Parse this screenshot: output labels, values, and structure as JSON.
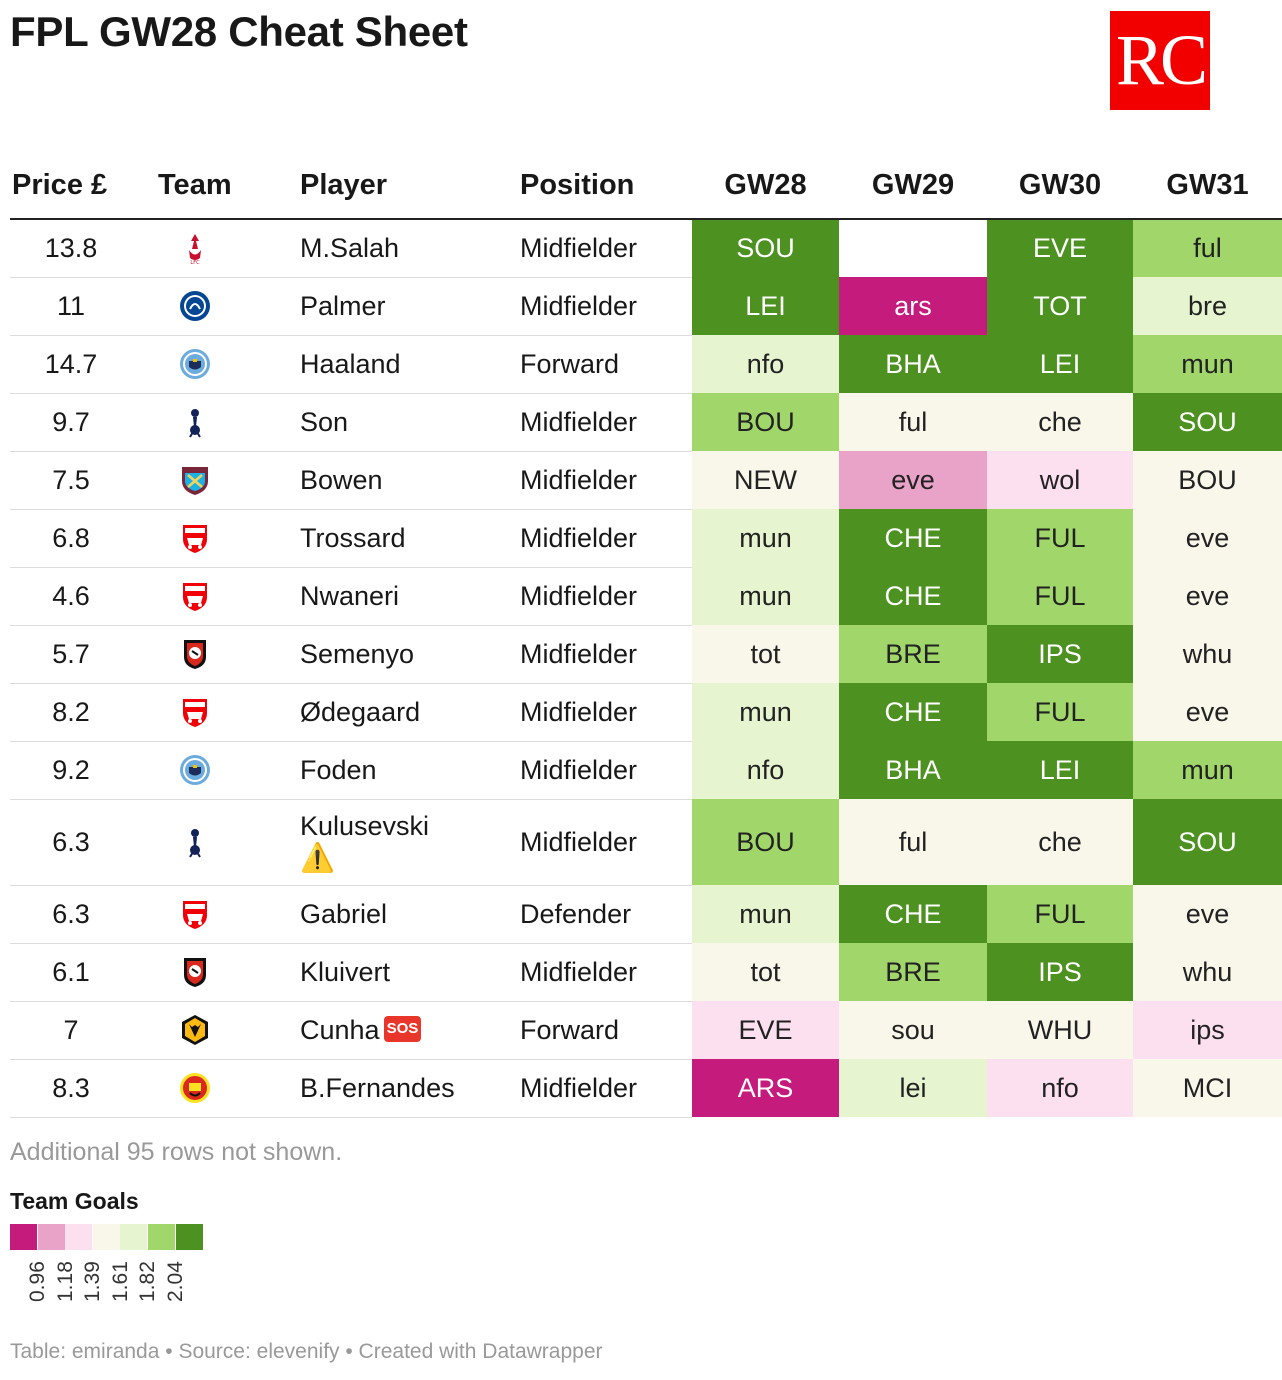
{
  "title": "FPL GW28 Cheat Sheet",
  "logo_text": "RC",
  "columns": [
    "Price £",
    "Team",
    "Player",
    "Position",
    "GW28",
    "GW29",
    "GW30",
    "GW31"
  ],
  "colors": {
    "c1": "#c51b7d",
    "c2": "#e9a3c9",
    "c3": "#fde0ef",
    "c4": "#f9f6ea",
    "c5": "#e6f5d0",
    "c6": "#a1d76a",
    "c7": "#4d9221",
    "none": "#ffffff"
  },
  "rows": [
    {
      "price": "13.8",
      "team": "liverpool-crest-icon",
      "player": "M.Salah",
      "badge": "",
      "position": "Midfielder",
      "fixtures": [
        {
          "t": "SOU",
          "c": "c7"
        },
        {
          "t": "",
          "c": "none"
        },
        {
          "t": "EVE",
          "c": "c7"
        },
        {
          "t": "ful",
          "c": "c6"
        }
      ]
    },
    {
      "price": "11",
      "team": "chelsea-crest-icon",
      "player": "Palmer",
      "badge": "",
      "position": "Midfielder",
      "fixtures": [
        {
          "t": "LEI",
          "c": "c7"
        },
        {
          "t": "ars",
          "c": "c1"
        },
        {
          "t": "TOT",
          "c": "c7"
        },
        {
          "t": "bre",
          "c": "c5"
        }
      ]
    },
    {
      "price": "14.7",
      "team": "mancity-crest-icon",
      "player": "Haaland",
      "badge": "",
      "position": "Forward",
      "fixtures": [
        {
          "t": "nfo",
          "c": "c5"
        },
        {
          "t": "BHA",
          "c": "c7"
        },
        {
          "t": "LEI",
          "c": "c7"
        },
        {
          "t": "mun",
          "c": "c6"
        }
      ]
    },
    {
      "price": "9.7",
      "team": "tottenham-crest-icon",
      "player": "Son",
      "badge": "",
      "position": "Midfielder",
      "fixtures": [
        {
          "t": "BOU",
          "c": "c6"
        },
        {
          "t": "ful",
          "c": "c4"
        },
        {
          "t": "che",
          "c": "c4"
        },
        {
          "t": "SOU",
          "c": "c7"
        }
      ]
    },
    {
      "price": "7.5",
      "team": "westham-crest-icon",
      "player": "Bowen",
      "badge": "",
      "position": "Midfielder",
      "fixtures": [
        {
          "t": "NEW",
          "c": "c4"
        },
        {
          "t": "eve",
          "c": "c2"
        },
        {
          "t": "wol",
          "c": "c3"
        },
        {
          "t": "BOU",
          "c": "c4"
        }
      ]
    },
    {
      "price": "6.8",
      "team": "arsenal-crest-icon",
      "player": "Trossard",
      "badge": "",
      "position": "Midfielder",
      "fixtures": [
        {
          "t": "mun",
          "c": "c5"
        },
        {
          "t": "CHE",
          "c": "c7"
        },
        {
          "t": "FUL",
          "c": "c6"
        },
        {
          "t": "eve",
          "c": "c4"
        }
      ]
    },
    {
      "price": "4.6",
      "team": "arsenal-crest-icon",
      "player": "Nwaneri",
      "badge": "",
      "position": "Midfielder",
      "fixtures": [
        {
          "t": "mun",
          "c": "c5"
        },
        {
          "t": "CHE",
          "c": "c7"
        },
        {
          "t": "FUL",
          "c": "c6"
        },
        {
          "t": "eve",
          "c": "c4"
        }
      ]
    },
    {
      "price": "5.7",
      "team": "bournemouth-crest-icon",
      "player": "Semenyo",
      "badge": "",
      "position": "Midfielder",
      "fixtures": [
        {
          "t": "tot",
          "c": "c4"
        },
        {
          "t": "BRE",
          "c": "c6"
        },
        {
          "t": "IPS",
          "c": "c7"
        },
        {
          "t": "whu",
          "c": "c4"
        }
      ]
    },
    {
      "price": "8.2",
      "team": "arsenal-crest-icon",
      "player": "Ødegaard",
      "badge": "",
      "position": "Midfielder",
      "fixtures": [
        {
          "t": "mun",
          "c": "c5"
        },
        {
          "t": "CHE",
          "c": "c7"
        },
        {
          "t": "FUL",
          "c": "c6"
        },
        {
          "t": "eve",
          "c": "c4"
        }
      ]
    },
    {
      "price": "9.2",
      "team": "mancity-crest-icon",
      "player": "Foden",
      "badge": "",
      "position": "Midfielder",
      "fixtures": [
        {
          "t": "nfo",
          "c": "c5"
        },
        {
          "t": "BHA",
          "c": "c7"
        },
        {
          "t": "LEI",
          "c": "c7"
        },
        {
          "t": "mun",
          "c": "c6"
        }
      ]
    },
    {
      "price": "6.3",
      "team": "tottenham-crest-icon",
      "player": "Kulusevski",
      "badge": "warning",
      "position": "Midfielder",
      "fixtures": [
        {
          "t": "BOU",
          "c": "c6"
        },
        {
          "t": "ful",
          "c": "c4"
        },
        {
          "t": "che",
          "c": "c4"
        },
        {
          "t": "SOU",
          "c": "c7"
        }
      ]
    },
    {
      "price": "6.3",
      "team": "arsenal-crest-icon",
      "player": "Gabriel",
      "badge": "",
      "position": "Defender",
      "fixtures": [
        {
          "t": "mun",
          "c": "c5"
        },
        {
          "t": "CHE",
          "c": "c7"
        },
        {
          "t": "FUL",
          "c": "c6"
        },
        {
          "t": "eve",
          "c": "c4"
        }
      ]
    },
    {
      "price": "6.1",
      "team": "bournemouth-crest-icon",
      "player": "Kluivert",
      "badge": "",
      "position": "Midfielder",
      "fixtures": [
        {
          "t": "tot",
          "c": "c4"
        },
        {
          "t": "BRE",
          "c": "c6"
        },
        {
          "t": "IPS",
          "c": "c7"
        },
        {
          "t": "whu",
          "c": "c4"
        }
      ]
    },
    {
      "price": "7",
      "team": "wolves-crest-icon",
      "player": "Cunha",
      "badge": "sos",
      "position": "Forward",
      "fixtures": [
        {
          "t": "EVE",
          "c": "c3"
        },
        {
          "t": "sou",
          "c": "c4"
        },
        {
          "t": "WHU",
          "c": "c4"
        },
        {
          "t": "ips",
          "c": "c3"
        }
      ]
    },
    {
      "price": "8.3",
      "team": "manutd-crest-icon",
      "player": "B.Fernandes",
      "badge": "",
      "position": "Midfielder",
      "fixtures": [
        {
          "t": "ARS",
          "c": "c1"
        },
        {
          "t": "lei",
          "c": "c5"
        },
        {
          "t": "nfo",
          "c": "c3"
        },
        {
          "t": "MCI",
          "c": "c4"
        }
      ]
    }
  ],
  "sos_label": "SOS",
  "note": "Additional 95 rows not shown.",
  "legend": {
    "title": "Team Goals",
    "colors": [
      "#c51b7d",
      "#e9a3c9",
      "#fde0ef",
      "#f9f6ea",
      "#e6f5d0",
      "#a1d76a",
      "#4d9221"
    ],
    "ticks": [
      "0.96",
      "1.18",
      "1.39",
      "1.61",
      "1.82",
      "2.04"
    ]
  },
  "footer": "Table: emiranda • Source: elevenify • Created with Datawrapper"
}
